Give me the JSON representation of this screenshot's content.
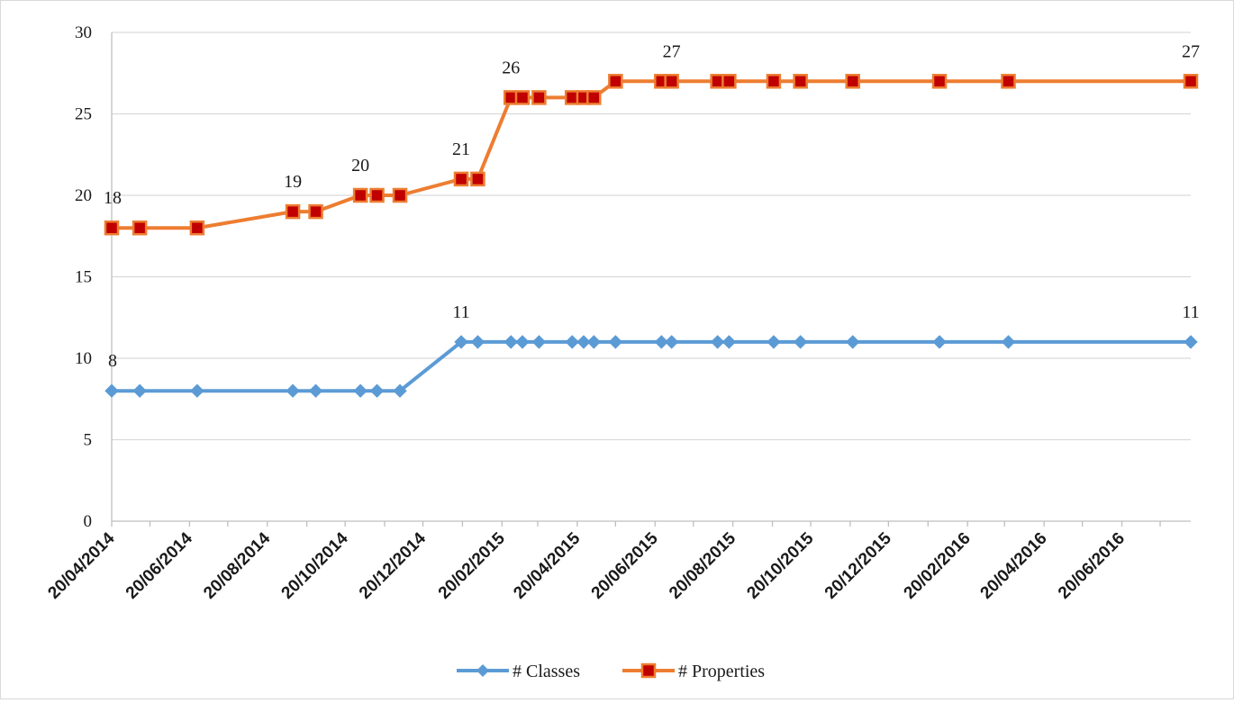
{
  "chart_data": {
    "type": "line",
    "title": "",
    "xlabel": "",
    "ylabel": "",
    "x_type": "date",
    "xlim": [
      "2014-04-20",
      "2016-08-13"
    ],
    "x_ticks": [
      "2014-04-20",
      "2014-06-20",
      "2014-08-20",
      "2014-10-20",
      "2014-12-20",
      "2015-02-20",
      "2015-04-20",
      "2015-06-20",
      "2015-08-20",
      "2015-10-20",
      "2015-12-20",
      "2016-02-20",
      "2016-04-20",
      "2016-06-20"
    ],
    "x_tick_labels": [
      "20/04/2014",
      "20/06/2014",
      "20/08/2014",
      "20/10/2014",
      "20/12/2014",
      "20/02/2015",
      "20/04/2015",
      "20/06/2015",
      "20/08/2015",
      "20/10/2015",
      "20/12/2015",
      "20/02/2016",
      "20/04/2016",
      "20/06/2016"
    ],
    "ylim": [
      0,
      30
    ],
    "y_ticks": [
      0,
      5,
      10,
      15,
      20,
      25,
      30
    ],
    "grid": "horizontal",
    "legend_position": "bottom",
    "series": [
      {
        "name": "# Classes",
        "color": "#5b9bd5",
        "marker": "diamond",
        "x": [
          "2014-04-20",
          "2014-05-12",
          "2014-06-26",
          "2014-09-09",
          "2014-09-27",
          "2014-11-01",
          "2014-11-14",
          "2014-12-02",
          "2015-01-19",
          "2015-02-01",
          "2015-02-27",
          "2015-03-08",
          "2015-03-21",
          "2015-04-16",
          "2015-04-25",
          "2015-05-03",
          "2015-05-20",
          "2015-06-25",
          "2015-07-03",
          "2015-08-08",
          "2015-08-17",
          "2015-09-21",
          "2015-10-12",
          "2015-11-22",
          "2016-01-29",
          "2016-03-23",
          "2016-08-13"
        ],
        "y": [
          8,
          8,
          8,
          8,
          8,
          8,
          8,
          8,
          11,
          11,
          11,
          11,
          11,
          11,
          11,
          11,
          11,
          11,
          11,
          11,
          11,
          11,
          11,
          11,
          11,
          11,
          11
        ]
      },
      {
        "name": "# Properties",
        "color": "#ed7d31",
        "marker_fill": "#c00000",
        "marker": "square",
        "x": [
          "2014-04-20",
          "2014-05-12",
          "2014-06-26",
          "2014-09-09",
          "2014-09-27",
          "2014-11-01",
          "2014-11-14",
          "2014-12-02",
          "2015-01-19",
          "2015-02-01",
          "2015-02-27",
          "2015-03-08",
          "2015-03-21",
          "2015-04-16",
          "2015-04-25",
          "2015-05-03",
          "2015-05-20",
          "2015-06-25",
          "2015-07-03",
          "2015-08-08",
          "2015-08-17",
          "2015-09-21",
          "2015-10-12",
          "2015-11-22",
          "2016-01-29",
          "2016-03-23",
          "2016-08-13"
        ],
        "y": [
          18,
          18,
          18,
          19,
          19,
          20,
          20,
          20,
          21,
          21,
          26,
          26,
          26,
          26,
          26,
          26,
          27,
          27,
          27,
          27,
          27,
          27,
          27,
          27,
          27,
          27,
          27
        ]
      }
    ],
    "data_labels": [
      {
        "series": 0,
        "index": 0,
        "text": "8"
      },
      {
        "series": 0,
        "index": 8,
        "text": "11"
      },
      {
        "series": 0,
        "index": 26,
        "text": "11"
      },
      {
        "series": 1,
        "index": 0,
        "text": "18"
      },
      {
        "series": 1,
        "index": 3,
        "text": "19"
      },
      {
        "series": 1,
        "index": 5,
        "text": "20"
      },
      {
        "series": 1,
        "index": 8,
        "text": "21"
      },
      {
        "series": 1,
        "index": 10,
        "text": "26"
      },
      {
        "series": 1,
        "index": 18,
        "text": "27"
      },
      {
        "series": 1,
        "index": 26,
        "text": "27"
      }
    ]
  }
}
